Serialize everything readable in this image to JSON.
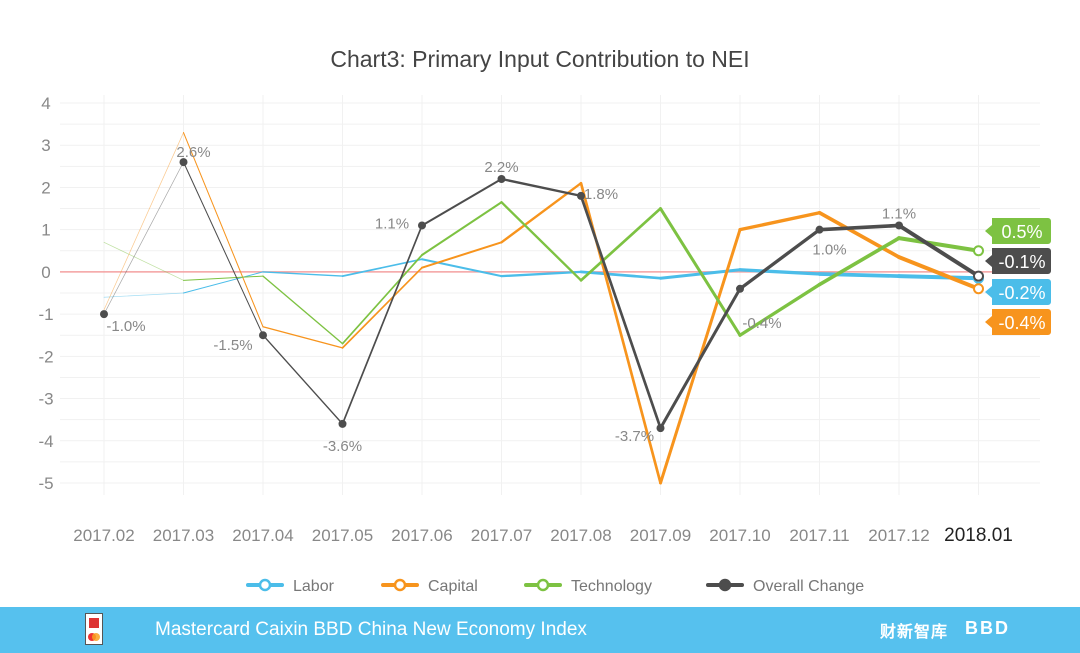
{
  "chart_data": {
    "type": "line",
    "title": "Chart3: Primary Input Contribution to NEI",
    "categories": [
      "2017.02",
      "2017.03",
      "2017.04",
      "2017.05",
      "2017.06",
      "2017.07",
      "2017.08",
      "2017.09",
      "2017.10",
      "2017.11",
      "2017.12",
      "2018.01"
    ],
    "ylim": [
      -5,
      4
    ],
    "yticks": [
      4,
      3,
      2,
      1,
      0,
      -1,
      -2,
      -3,
      -4,
      -5
    ],
    "grid": true,
    "legend_position": "bottom",
    "series": [
      {
        "name": "Labor",
        "color": "#4bbde9",
        "values": [
          -0.6,
          -0.5,
          0.0,
          -0.1,
          0.3,
          -0.1,
          0.0,
          -0.15,
          0.05,
          -0.05,
          -0.1,
          -0.15
        ],
        "end_label": "-0.2%"
      },
      {
        "name": "Capital",
        "color": "#f7941d",
        "values": [
          -0.9,
          3.3,
          -1.3,
          -1.8,
          0.1,
          0.7,
          2.1,
          -5.0,
          1.0,
          1.4,
          0.35,
          -0.4
        ],
        "end_label": "-0.4%"
      },
      {
        "name": "Technology",
        "color": "#7dc242",
        "values": [
          0.7,
          -0.2,
          -0.1,
          -1.7,
          0.4,
          1.65,
          -0.2,
          1.5,
          -1.5,
          -0.3,
          0.8,
          0.5
        ],
        "end_label": "0.5%"
      },
      {
        "name": "Overall Change",
        "color": "#4d4d4d",
        "values": [
          -1.0,
          2.6,
          -1.5,
          -3.6,
          1.1,
          2.2,
          1.8,
          -3.7,
          -0.4,
          1.0,
          1.1,
          -0.1
        ],
        "end_label": "-0.1%",
        "data_labels": [
          "-1.0%",
          "2.6%",
          "-1.5%",
          "-3.6%",
          "1.1%",
          "2.2%",
          "1.8%",
          "-3.7%",
          "-0.4%",
          "1.0%",
          "1.1%",
          ""
        ]
      }
    ],
    "zero_line_color": "#f4a0a0"
  },
  "footer": {
    "title": "Mastercard Caixin BBD China New Economy Index",
    "logo_nei": "NEI",
    "logo_caixin": "财新智库",
    "logo_bbd": "BBD"
  }
}
